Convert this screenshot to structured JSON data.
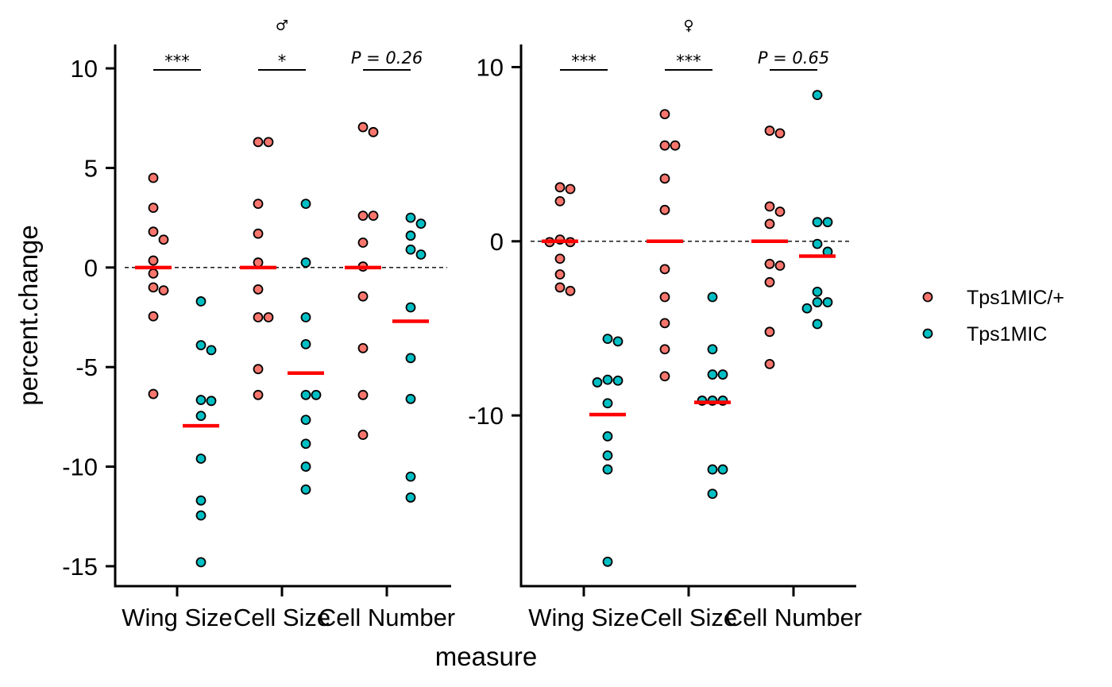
{
  "chart_data": {
    "type": "scatter",
    "xlabel": "measure",
    "ylabel": "percent.change",
    "categories": [
      "Wing Size",
      "Cell Size",
      "Cell Number"
    ],
    "legend": {
      "placement": "right",
      "entries": [
        {
          "label": "Tps1MIC/+",
          "color": "#F8766D"
        },
        {
          "label": "Tps1MIC",
          "color": "#00BFC4"
        }
      ]
    },
    "reference_line": {
      "y": 0,
      "style": "dashed"
    },
    "median_color": "#FF0000",
    "panels": [
      {
        "title": "♂",
        "ylim": [
          -16,
          11.2
        ],
        "yticks": [
          10,
          5,
          0,
          -5,
          -10,
          -15
        ],
        "ytick_labels": [
          "10",
          "5",
          "0",
          "-5",
          "-10",
          "-15"
        ],
        "significance": [
          {
            "category": "Wing Size",
            "label": "***",
            "is_p": false
          },
          {
            "category": "Cell Size",
            "label": "*",
            "is_p": false
          },
          {
            "category": "Cell Number",
            "label": "P = 0.26",
            "is_p": true
          }
        ],
        "groups": [
          {
            "category": "Wing Size",
            "series": "Tps1MIC/+",
            "median": 0.0,
            "points": [
              4.5,
              3.0,
              1.8,
              1.4,
              0.35,
              -0.3,
              -1.0,
              -1.15,
              -2.45,
              -6.35
            ]
          },
          {
            "category": "Wing Size",
            "series": "Tps1MIC",
            "median": -7.95,
            "points": [
              -1.7,
              -3.9,
              -4.15,
              -6.65,
              -6.7,
              -7.45,
              -9.6,
              -11.7,
              -12.45,
              -14.8
            ]
          },
          {
            "category": "Cell Size",
            "series": "Tps1MIC/+",
            "median": 0.0,
            "points": [
              6.3,
              6.3,
              3.2,
              1.7,
              0.25,
              -1.1,
              -2.5,
              -2.5,
              -5.1,
              -6.4
            ]
          },
          {
            "category": "Cell Size",
            "series": "Tps1MIC",
            "median": -5.3,
            "points": [
              3.2,
              0.25,
              -2.5,
              -3.85,
              -6.4,
              -6.4,
              -7.65,
              -8.85,
              -10.0,
              -11.15
            ]
          },
          {
            "category": "Cell Number",
            "series": "Tps1MIC/+",
            "median": 0.0,
            "points": [
              7.05,
              6.8,
              2.6,
              2.6,
              1.25,
              0.05,
              -1.45,
              -4.05,
              -6.4,
              -8.4
            ]
          },
          {
            "category": "Cell Number",
            "series": "Tps1MIC",
            "median": -2.7,
            "points": [
              2.5,
              2.2,
              1.6,
              0.9,
              0.65,
              -2.0,
              -4.55,
              -6.6,
              -10.5,
              -11.55
            ]
          }
        ]
      },
      {
        "title": "♀",
        "ylim": [
          -19.8,
          11.3
        ],
        "yticks": [
          10,
          0,
          -10
        ],
        "ytick_labels": [
          "10",
          "0",
          "-10"
        ],
        "significance": [
          {
            "category": "Wing Size",
            "label": "***",
            "is_p": false
          },
          {
            "category": "Cell Size",
            "label": "***",
            "is_p": false
          },
          {
            "category": "Cell Number",
            "label": "P = 0.65",
            "is_p": true
          }
        ],
        "groups": [
          {
            "category": "Wing Size",
            "series": "Tps1MIC/+",
            "median": 0.0,
            "points": [
              3.1,
              3.0,
              2.3,
              0.1,
              -0.05,
              -0.05,
              -1.0,
              -1.9,
              -2.65,
              -2.85
            ]
          },
          {
            "category": "Wing Size",
            "series": "Tps1MIC",
            "median": -9.95,
            "points": [
              -5.6,
              -5.75,
              -7.95,
              -8.0,
              -8.1,
              -9.3,
              -11.2,
              -12.3,
              -13.1,
              -18.4
            ]
          },
          {
            "category": "Cell Size",
            "series": "Tps1MIC/+",
            "median": 0.0,
            "points": [
              7.3,
              5.5,
              5.5,
              3.6,
              1.8,
              -1.6,
              -3.2,
              -4.7,
              -6.2,
              -7.75
            ]
          },
          {
            "category": "Cell Size",
            "series": "Tps1MIC",
            "median": -9.25,
            "points": [
              -3.2,
              -6.2,
              -7.65,
              -7.65,
              -9.15,
              -9.15,
              -9.15,
              -13.1,
              -13.1,
              -14.5
            ]
          },
          {
            "category": "Cell Number",
            "series": "Tps1MIC/+",
            "median": 0.0,
            "points": [
              6.35,
              6.2,
              2.0,
              1.7,
              1.0,
              -1.3,
              -1.4,
              -2.35,
              -5.2,
              -7.05
            ]
          },
          {
            "category": "Cell Number",
            "series": "Tps1MIC",
            "median": -0.85,
            "points": [
              8.4,
              1.1,
              1.1,
              -0.15,
              -0.6,
              -2.9,
              -3.5,
              -3.5,
              -3.85,
              -4.75
            ]
          }
        ]
      }
    ]
  }
}
